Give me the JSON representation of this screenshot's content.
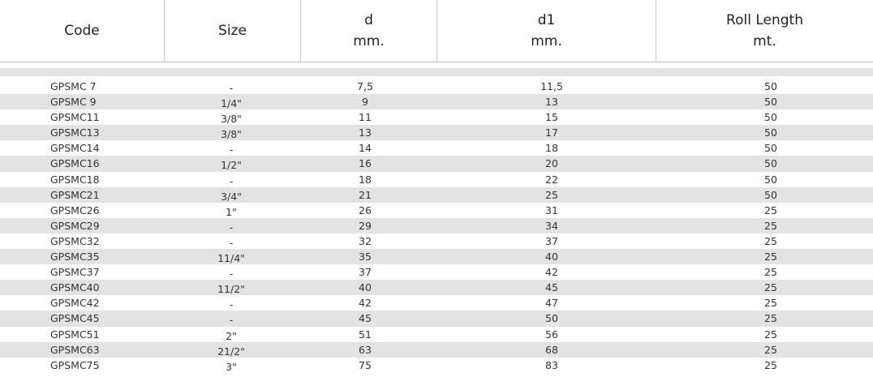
{
  "headers": {
    "code": "Code",
    "size": "Size",
    "d": {
      "line1": "d",
      "line2": "mm."
    },
    "d1": {
      "line1": "d1",
      "line2": "mm."
    },
    "roll": {
      "line1": "Roll Length",
      "line2": "mt."
    }
  },
  "rows": [
    {
      "code": "GPSMC 7",
      "size": "-",
      "d": "7,5",
      "d1": "11,5",
      "roll": "50"
    },
    {
      "code": "GPSMC 9",
      "size": "1/4\"",
      "d": "9",
      "d1": "13",
      "roll": "50"
    },
    {
      "code": "GPSMC11",
      "size": "3/8\"",
      "d": "11",
      "d1": "15",
      "roll": "50"
    },
    {
      "code": "GPSMC13",
      "size": "3/8\"",
      "d": "13",
      "d1": "17",
      "roll": "50"
    },
    {
      "code": "GPSMC14",
      "size": "-",
      "d": "14",
      "d1": "18",
      "roll": "50"
    },
    {
      "code": "GPSMC16",
      "size": "1/2\"",
      "d": "16",
      "d1": "20",
      "roll": "50"
    },
    {
      "code": "GPSMC18",
      "size": "-",
      "d": "18",
      "d1": "22",
      "roll": "50"
    },
    {
      "code": "GPSMC21",
      "size": "3/4\"",
      "d": "21",
      "d1": "25",
      "roll": "50"
    },
    {
      "code": "GPSMC26",
      "size": "1\"",
      "d": "26",
      "d1": "31",
      "roll": "25"
    },
    {
      "code": "GPSMC29",
      "size": "-",
      "d": "29",
      "d1": "34",
      "roll": "25"
    },
    {
      "code": "GPSMC32",
      "size": "-",
      "d": "32",
      "d1": "37",
      "roll": "25"
    },
    {
      "code": "GPSMC35",
      "size": "11/4\"",
      "d": "35",
      "d1": "40",
      "roll": "25"
    },
    {
      "code": "GPSMC37",
      "size": "-",
      "d": "37",
      "d1": "42",
      "roll": "25"
    },
    {
      "code": "GPSMC40",
      "size": "11/2\"",
      "d": "40",
      "d1": "45",
      "roll": "25"
    },
    {
      "code": "GPSMC42",
      "size": "-",
      "d": "42",
      "d1": "47",
      "roll": "25"
    },
    {
      "code": "GPSMC45",
      "size": "-",
      "d": "45",
      "d1": "50",
      "roll": "25"
    },
    {
      "code": "GPSMC51",
      "size": "2\"",
      "d": "51",
      "d1": "56",
      "roll": "25"
    },
    {
      "code": "GPSMC63",
      "size": "21/2\"",
      "d": "63",
      "d1": "68",
      "roll": "25"
    },
    {
      "code": "GPSMC75",
      "size": "3\"",
      "d": "75",
      "d1": "83",
      "roll": "25"
    }
  ]
}
